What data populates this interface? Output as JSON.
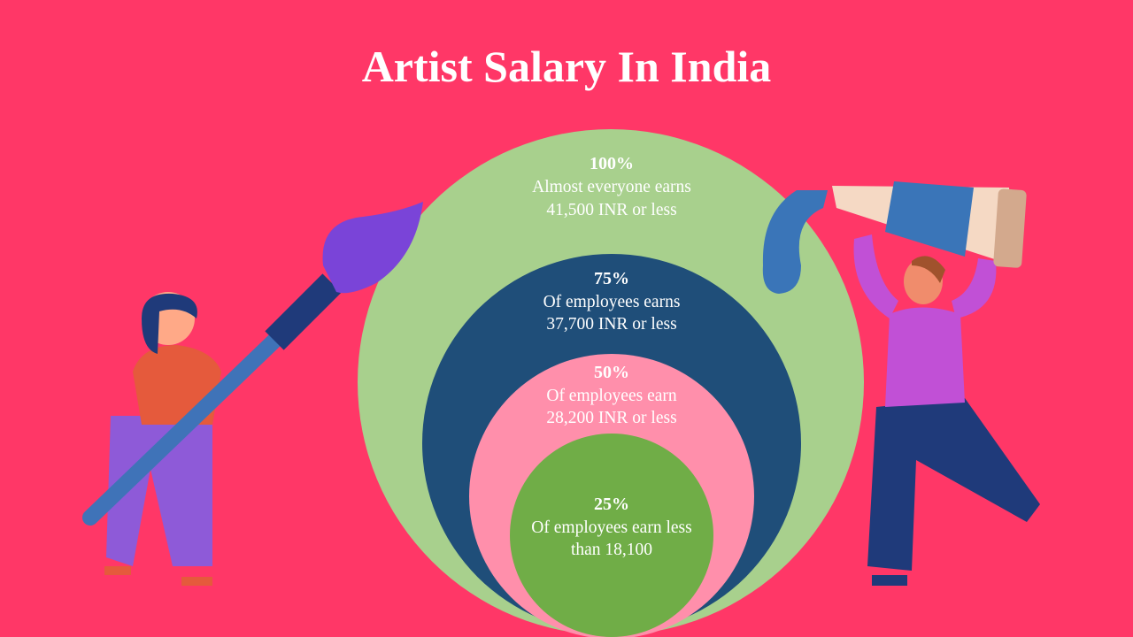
{
  "title": "Artist Salary In India",
  "rings": [
    {
      "percent": "100%",
      "lines": [
        "Almost everyone earns",
        "41,500 INR or less"
      ]
    },
    {
      "percent": "75%",
      "lines": [
        "Of employees earns",
        "37,700 INR or less"
      ]
    },
    {
      "percent": "50%",
      "lines": [
        "Of employees earn",
        "28,200 INR or less"
      ]
    },
    {
      "percent": "25%",
      "lines": [
        "Of employees earn less",
        "than 18,100"
      ]
    }
  ]
}
